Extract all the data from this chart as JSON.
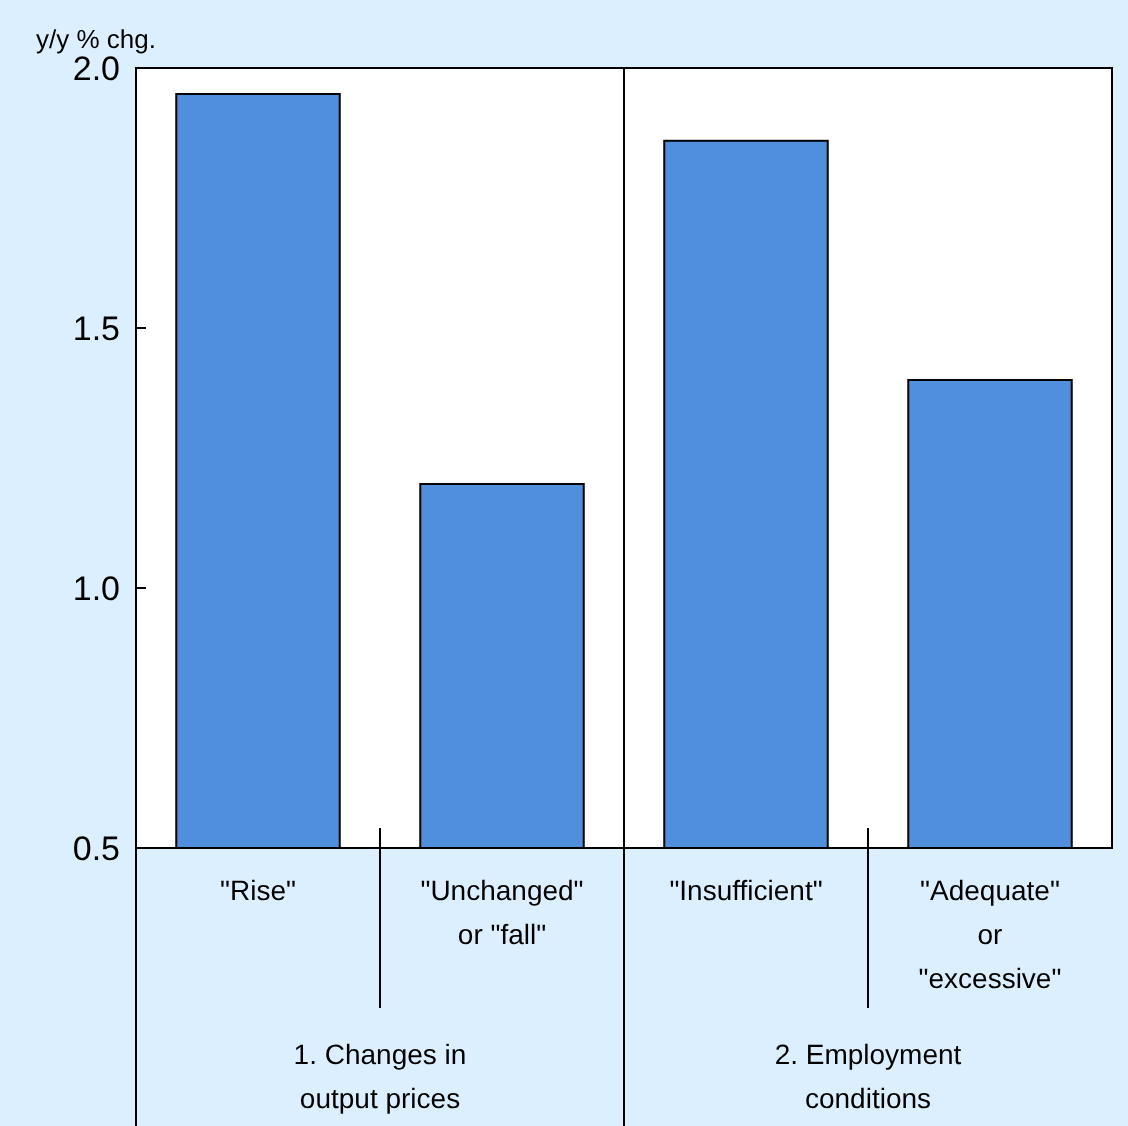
{
  "chart_data": {
    "type": "bar",
    "ylabel": "y/y % chg.",
    "categories": [
      "\"Rise\"",
      "\"Unchanged\" or \"fall\"",
      "\"Insufficient\"",
      "\"Adequate\" or \"excessive\""
    ],
    "values": [
      1.95,
      1.2,
      1.86,
      1.4
    ],
    "color": "#4f8fdc",
    "ylim": [
      0.5,
      2.0
    ],
    "yticks": [
      {
        "value": 0.5,
        "label": "0.5"
      },
      {
        "value": 1.0,
        "label": "1.0"
      },
      {
        "value": 1.5,
        "label": "1.5"
      },
      {
        "value": 2.0,
        "label": "2.0"
      }
    ],
    "annotations": [
      "1. Changes in output prices",
      "2. Employment conditions"
    ]
  }
}
